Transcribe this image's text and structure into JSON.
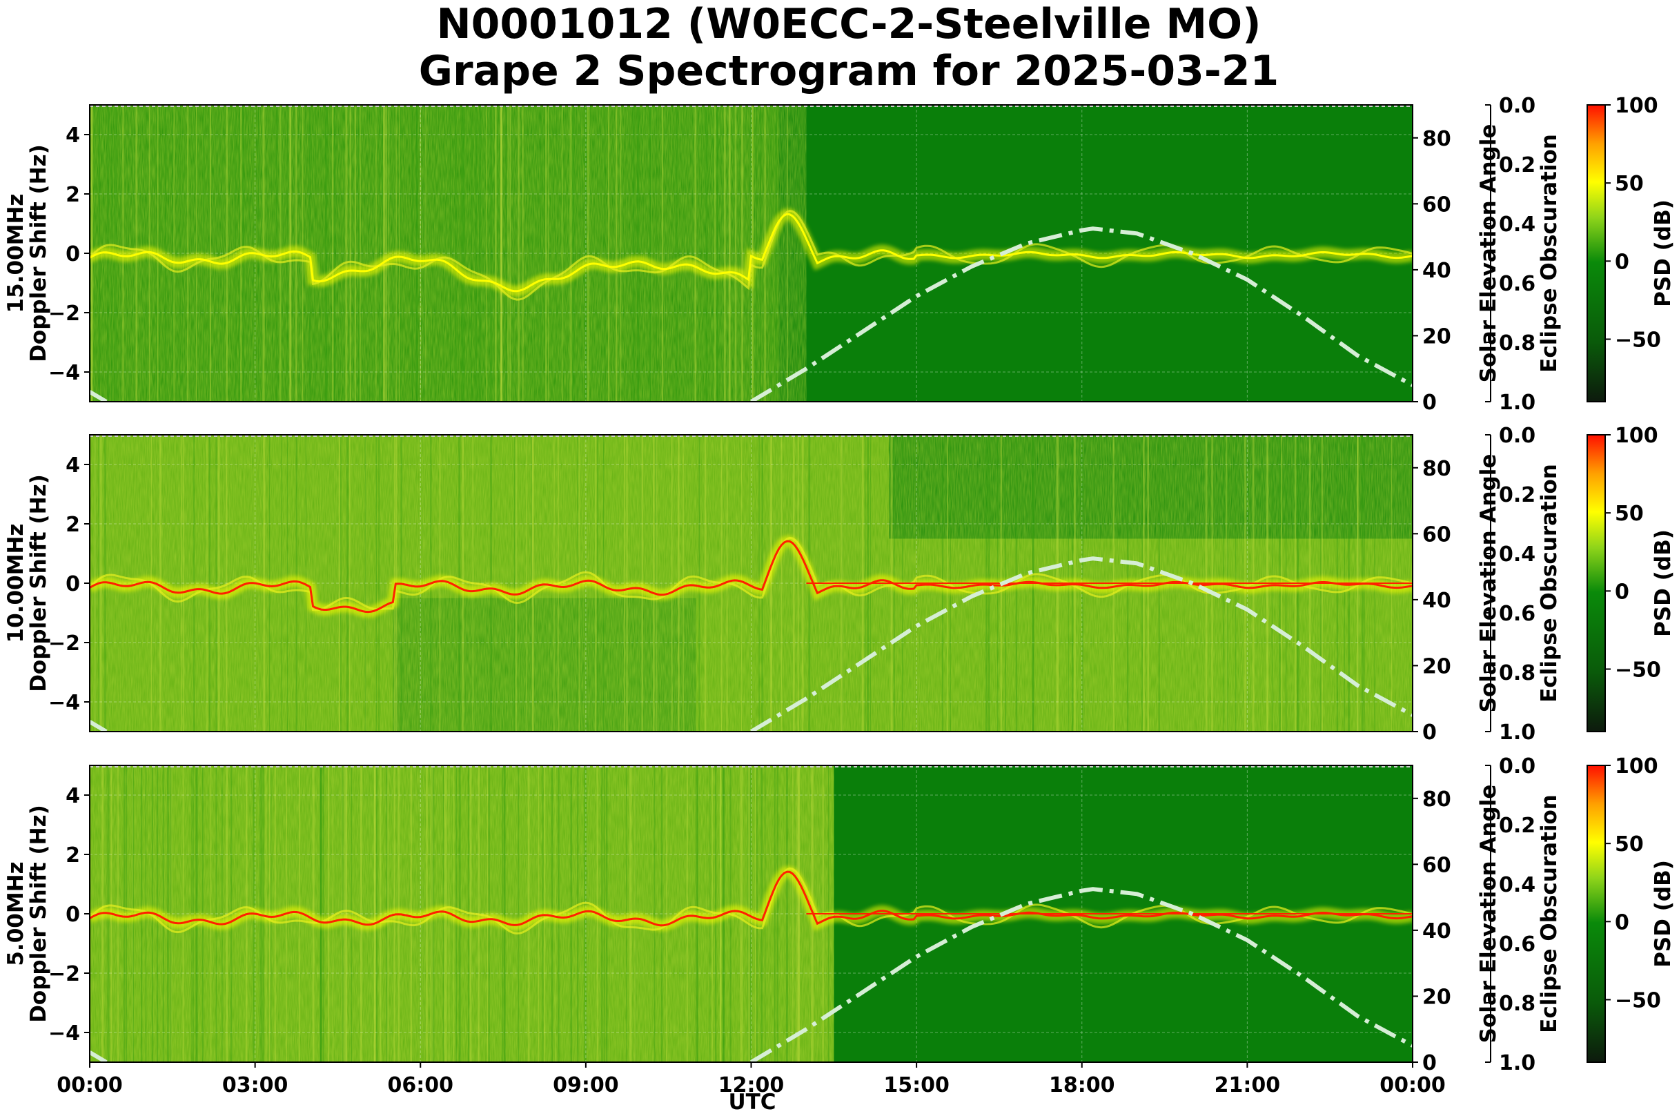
{
  "title_line1": "N0001012 (W0ECC-2-Steelville MO)",
  "title_line2": "Grape 2 Spectrogram for 2025-03-21",
  "colors": {
    "bg_green": "#0a7f0a",
    "trace_red": "#ff2000",
    "trace_yellow": "#ffff00",
    "solar_curve": "#d6eed6"
  },
  "chart_data": [
    {
      "type": "heatmap",
      "frequency_label": "15.00MHz",
      "ylabel": "Doppler Shift (Hz)",
      "y_ticks": [
        "4",
        "2",
        "0",
        "−2",
        "−4"
      ],
      "y_tick_values": [
        4,
        2,
        0,
        -2,
        -4
      ],
      "ylim": [
        -5,
        5
      ],
      "xlim_hours": [
        0,
        24
      ],
      "solar_axis": {
        "label": "Solar Elevation Angle",
        "ticks": [
          "80",
          "60",
          "40",
          "20",
          "0"
        ],
        "tick_values": [
          80,
          60,
          40,
          20,
          0
        ],
        "range": [
          0,
          90
        ]
      },
      "eclipse_axis": {
        "label": "Eclipse Obscuration",
        "ticks": [
          "0.0",
          "0.2",
          "0.4",
          "0.6",
          "0.8",
          "1.0"
        ]
      },
      "colorbar": {
        "label": "PSD (dB)",
        "ticks": [
          "100",
          "50",
          "0",
          "−50"
        ],
        "tick_values": [
          100,
          50,
          0,
          -50
        ],
        "range": [
          -90,
          100
        ]
      },
      "trace_color": "yellow",
      "grid": true
    },
    {
      "type": "heatmap",
      "frequency_label": "10.00MHz",
      "ylabel": "Doppler Shift (Hz)",
      "y_ticks": [
        "4",
        "2",
        "0",
        "−2",
        "−4"
      ],
      "y_tick_values": [
        4,
        2,
        0,
        -2,
        -4
      ],
      "ylim": [
        -5,
        5
      ],
      "xlim_hours": [
        0,
        24
      ],
      "solar_axis": {
        "label": "Solar Elevation Angle",
        "ticks": [
          "80",
          "60",
          "40",
          "20",
          "0"
        ],
        "tick_values": [
          80,
          60,
          40,
          20,
          0
        ],
        "range": [
          0,
          90
        ]
      },
      "eclipse_axis": {
        "label": "Eclipse Obscuration",
        "ticks": [
          "0.0",
          "0.2",
          "0.4",
          "0.6",
          "0.8",
          "1.0"
        ]
      },
      "colorbar": {
        "label": "PSD (dB)",
        "ticks": [
          "100",
          "50",
          "0",
          "−50"
        ],
        "tick_values": [
          100,
          50,
          0,
          -50
        ],
        "range": [
          -90,
          100
        ]
      },
      "trace_color": "red",
      "grid": true
    },
    {
      "type": "heatmap",
      "frequency_label": "5.00MHz",
      "ylabel": "Doppler Shift (Hz)",
      "y_ticks": [
        "4",
        "2",
        "0",
        "−2",
        "−4"
      ],
      "y_tick_values": [
        4,
        2,
        0,
        -2,
        -4
      ],
      "ylim": [
        -5,
        5
      ],
      "xlim_hours": [
        0,
        24
      ],
      "solar_axis": {
        "label": "Solar Elevation Angle",
        "ticks": [
          "80",
          "60",
          "40",
          "20",
          "0"
        ],
        "tick_values": [
          80,
          60,
          40,
          20,
          0
        ],
        "range": [
          0,
          90
        ]
      },
      "eclipse_axis": {
        "label": "Eclipse Obscuration",
        "ticks": [
          "0.0",
          "0.2",
          "0.4",
          "0.6",
          "0.8",
          "1.0"
        ]
      },
      "colorbar": {
        "label": "PSD (dB)",
        "ticks": [
          "100",
          "50",
          "0",
          "−50"
        ],
        "tick_values": [
          100,
          50,
          0,
          -50
        ],
        "range": [
          -90,
          100
        ]
      },
      "trace_color": "red",
      "grid": true
    }
  ],
  "x_ticks": [
    "00:00",
    "03:00",
    "06:00",
    "09:00",
    "12:00",
    "15:00",
    "18:00",
    "21:00",
    "00:00"
  ],
  "x_tick_hours": [
    0,
    3,
    6,
    9,
    12,
    15,
    18,
    21,
    24
  ],
  "xlabel": "UTC",
  "solar_elevation_curve": {
    "hours": [
      0,
      0.3,
      12.0,
      13.0,
      14.0,
      15.0,
      16.0,
      17.0,
      18.0,
      18.2,
      19.0,
      20.0,
      21.0,
      22.0,
      23.0,
      24.0
    ],
    "degrees": [
      3,
      0,
      0,
      10,
      21,
      32,
      41,
      48,
      52,
      52.5,
      51,
      45,
      37,
      26,
      14,
      5
    ]
  }
}
